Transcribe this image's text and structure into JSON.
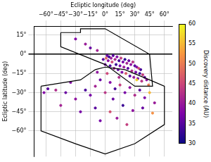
{
  "chart_data": {
    "type": "scatter",
    "x_label": "Ecliptic longitude (deg)",
    "y_label": "Ecliptic latitude (deg)",
    "xlim": [
      -72,
      68
    ],
    "xticks": [
      {
        "value": -60,
        "label": "−60°"
      },
      {
        "value": -45,
        "label": "−45°"
      },
      {
        "value": -30,
        "label": "−30°"
      },
      {
        "value": -15,
        "label": "−15°"
      },
      {
        "value": 0,
        "label": "0°"
      },
      {
        "value": 15,
        "label": "15°"
      },
      {
        "value": 30,
        "label": "30°"
      },
      {
        "value": 45,
        "label": "45°"
      },
      {
        "value": 60,
        "label": "60°"
      }
    ],
    "ylim": [
      -80,
      22
    ],
    "yticks": [
      {
        "value": 15,
        "label": "15°"
      },
      {
        "value": 0,
        "label": "0°"
      },
      {
        "value": -15,
        "label": "−15°"
      },
      {
        "value": -30,
        "label": "−30°"
      },
      {
        "value": -45,
        "label": "−45°"
      },
      {
        "value": -60,
        "label": "−60°"
      }
    ],
    "grid": true,
    "x": [
      2,
      4,
      6,
      8,
      10,
      12,
      14,
      16,
      18,
      20,
      22,
      24,
      26,
      28,
      30,
      32,
      34,
      36,
      3,
      7,
      11,
      15,
      19,
      23,
      27,
      31,
      35,
      38,
      40,
      42,
      5,
      9,
      13,
      17,
      21,
      25,
      29,
      33,
      37,
      1,
      0,
      -2,
      -5,
      -10,
      5,
      10,
      15,
      20,
      25,
      30,
      35,
      40,
      45,
      50,
      8,
      0,
      -15,
      -20,
      -30,
      -40,
      -50,
      -58,
      -62,
      -45,
      -25,
      -10,
      5,
      18,
      28,
      38,
      48,
      12,
      -5,
      22,
      32,
      44,
      -35,
      2,
      -8,
      14,
      -30,
      -20,
      -15,
      -8
    ],
    "values": [
      -1,
      -2,
      -3,
      -1,
      -4,
      -2,
      -5,
      -3,
      -6,
      -4,
      -7,
      -5,
      -8,
      -6,
      -9,
      -10,
      -11,
      -12,
      -5,
      -6,
      -8,
      -9,
      -10,
      -11,
      -13,
      -14,
      -15,
      -16,
      -18,
      -20,
      -9,
      -11,
      -12,
      -14,
      -15,
      -17,
      -18,
      -19,
      -21,
      -3,
      -8,
      -4,
      -20,
      -25,
      -22,
      -27,
      -24,
      -30,
      -26,
      -32,
      -28,
      -34,
      -30,
      -38,
      -35,
      -30,
      -32,
      -28,
      -35,
      -30,
      -28,
      -27,
      -30,
      -40,
      -45,
      -42,
      -45,
      -40,
      -44,
      -42,
      -46,
      -50,
      -52,
      -55,
      -20,
      -24,
      -22,
      -15,
      -14,
      -18,
      12,
      8,
      5,
      3
    ],
    "discovery_distance": [
      36,
      33,
      40,
      35,
      42,
      38,
      34,
      44,
      37,
      32,
      41,
      36,
      39,
      43,
      35,
      38,
      46,
      34,
      39,
      45,
      33,
      37,
      40,
      35,
      42,
      37,
      33,
      44,
      36,
      39,
      34,
      41,
      36,
      38,
      47,
      35,
      40,
      37,
      43,
      48,
      37,
      35,
      36,
      41,
      38,
      34,
      44,
      37,
      39,
      42,
      35,
      38,
      55,
      40,
      36,
      43,
      37,
      34,
      39,
      36,
      42,
      35,
      38,
      41,
      37,
      35,
      46,
      33,
      39,
      36,
      52,
      40,
      37,
      44,
      57,
      50,
      38,
      45,
      39,
      42,
      38,
      40,
      36,
      41
    ],
    "colorbar": {
      "label": "Discovery distance (AU)",
      "range": [
        30,
        60
      ],
      "ticks": [
        30,
        35,
        40,
        45,
        50,
        55,
        60
      ]
    },
    "footprints": [
      {
        "lon": [
          -45,
          -25,
          -25,
          0,
          45,
          48,
          30,
          0,
          -45
        ],
        "lat": [
          17,
          17,
          20,
          20,
          0,
          -25,
          -25,
          -8,
          6
        ]
      },
      {
        "lon": [
          -65,
          -25,
          -10,
          0,
          20,
          45,
          60,
          60,
          30,
          0,
          -30,
          -65
        ],
        "lat": [
          -25,
          -20,
          -12,
          -10,
          -12,
          -20,
          -25,
          -55,
          -70,
          -78,
          -70,
          -60
        ]
      }
    ]
  }
}
